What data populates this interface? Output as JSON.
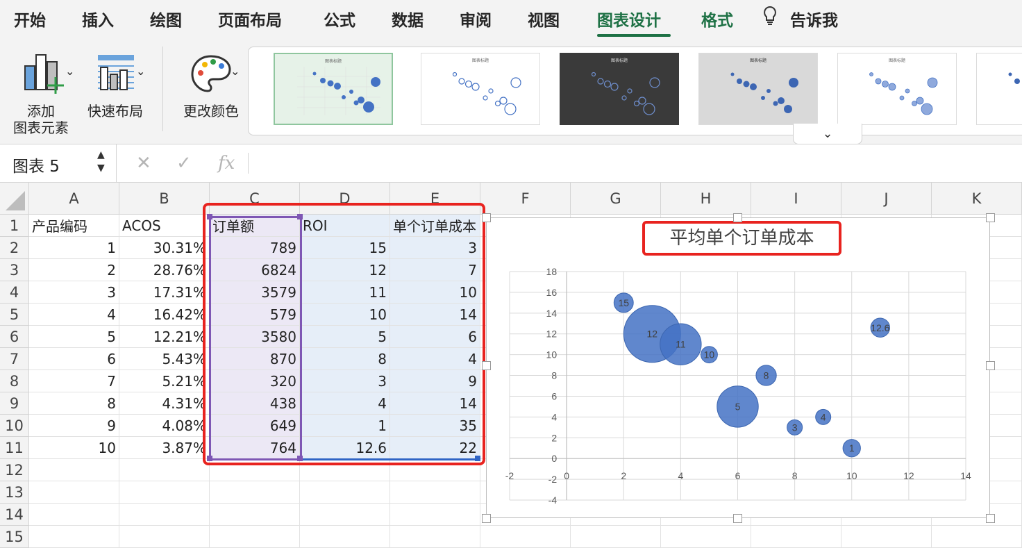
{
  "ribbon_tabs": [
    "开始",
    "插入",
    "绘图",
    "页面布局",
    "公式",
    "数据",
    "审阅",
    "视图",
    "图表设计",
    "格式"
  ],
  "active_tab": "图表设计",
  "tell_me": "告诉我",
  "ribbon": {
    "add_element_line1": "添加",
    "add_element_line2": "图表元素",
    "quick_layout": "快速布局",
    "change_colors": "更改颜色",
    "style_thumbnail_title": "图表标题"
  },
  "formula_bar": {
    "name_box": "图表 5",
    "cancel_icon": "✕",
    "confirm_icon": "✓",
    "fx_label": "fx"
  },
  "columns": [
    "A",
    "B",
    "C",
    "D",
    "E",
    "F",
    "G",
    "H",
    "I",
    "J",
    "K"
  ],
  "rows": [
    "1",
    "2",
    "3",
    "4",
    "5",
    "6",
    "7",
    "8",
    "9",
    "10",
    "11",
    "12",
    "13",
    "14",
    "15"
  ],
  "table": {
    "headers": [
      "产品编码",
      "ACOS",
      "订单额",
      "ROI",
      "单个订单成本"
    ],
    "data": [
      [
        "1",
        "30.31%",
        "789",
        "15",
        "3"
      ],
      [
        "2",
        "28.76%",
        "6824",
        "12",
        "7"
      ],
      [
        "3",
        "17.31%",
        "3579",
        "11",
        "10"
      ],
      [
        "4",
        "16.42%",
        "579",
        "10",
        "14"
      ],
      [
        "5",
        "12.21%",
        "3580",
        "5",
        "6"
      ],
      [
        "6",
        "5.43%",
        "870",
        "8",
        "4"
      ],
      [
        "7",
        "5.21%",
        "320",
        "3",
        "9"
      ],
      [
        "8",
        "4.31%",
        "438",
        "4",
        "14"
      ],
      [
        "9",
        "4.08%",
        "649",
        "1",
        "35"
      ],
      [
        "10",
        "3.87%",
        "764",
        "12.6",
        "22"
      ]
    ]
  },
  "colors": {
    "accent_green": "#1e7145",
    "bubble": "#4472c4",
    "highlight_red": "#e8231f"
  },
  "chart_data": {
    "type": "scatter",
    "subtype": "bubble",
    "title": "平均单个订单成本",
    "xlim": [
      -2,
      14
    ],
    "ylim": [
      -4,
      18
    ],
    "xticks": [
      -2,
      0,
      2,
      4,
      6,
      8,
      10,
      12,
      14
    ],
    "yticks": [
      -4,
      -2,
      0,
      2,
      4,
      6,
      8,
      10,
      12,
      14,
      16,
      18
    ],
    "grid": true,
    "points": [
      {
        "x": 2,
        "y": 15,
        "size": 789,
        "label": "15"
      },
      {
        "x": 3,
        "y": 12,
        "size": 6824,
        "label": "12"
      },
      {
        "x": 4,
        "y": 11,
        "size": 3579,
        "label": "11"
      },
      {
        "x": 5,
        "y": 10,
        "size": 579,
        "label": "10"
      },
      {
        "x": 6,
        "y": 5,
        "size": 3580,
        "label": "5"
      },
      {
        "x": 7,
        "y": 8,
        "size": 870,
        "label": "8"
      },
      {
        "x": 8,
        "y": 3,
        "size": 320,
        "label": "3"
      },
      {
        "x": 9,
        "y": 4,
        "size": 438,
        "label": "4"
      },
      {
        "x": 10,
        "y": 1,
        "size": 649,
        "label": "1"
      },
      {
        "x": 11,
        "y": 12.6,
        "size": 764,
        "label": "12.6"
      }
    ]
  }
}
